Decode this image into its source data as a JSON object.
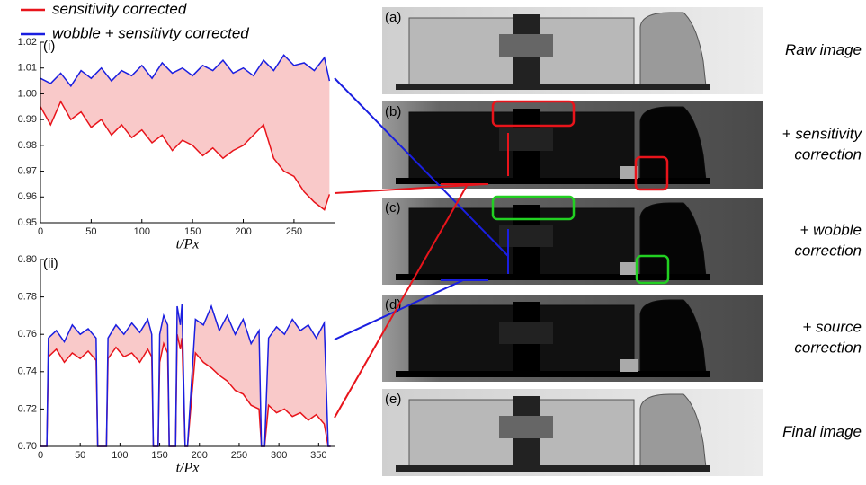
{
  "chart_data": [
    {
      "type": "line",
      "panel_label": "(i)",
      "x_label": "t/Px",
      "xlim": [
        0,
        290
      ],
      "ylim": [
        0.95,
        1.02
      ],
      "xticks": [
        0,
        50,
        100,
        150,
        200,
        250
      ],
      "yticks": [
        0.95,
        0.96,
        0.97,
        0.98,
        0.99,
        {
          "value": 1,
          "label": "1.00"
        },
        1.01,
        1.02
      ],
      "fill_between": "#f9c9c9",
      "x": [
        0,
        10,
        20,
        30,
        40,
        50,
        60,
        70,
        80,
        90,
        100,
        110,
        120,
        130,
        140,
        150,
        160,
        170,
        180,
        190,
        200,
        210,
        220,
        230,
        240,
        250,
        260,
        270,
        280,
        285
      ],
      "series": [
        {
          "name": "sensitivity corrected",
          "color": "#e8141b",
          "values": [
            0.995,
            0.988,
            0.997,
            0.99,
            0.993,
            0.987,
            0.99,
            0.984,
            0.988,
            0.983,
            0.986,
            0.981,
            0.984,
            0.978,
            0.982,
            0.98,
            0.976,
            0.979,
            0.975,
            0.978,
            0.98,
            0.984,
            0.988,
            0.975,
            0.97,
            0.968,
            0.962,
            0.958,
            0.955,
            0.961
          ]
        },
        {
          "name": "wobble + sensitivty corrected",
          "color": "#1a1ee0",
          "values": [
            1.006,
            1.004,
            1.008,
            1.003,
            1.009,
            1.006,
            1.01,
            1.005,
            1.009,
            1.007,
            1.011,
            1.006,
            1.012,
            1.008,
            1.01,
            1.007,
            1.011,
            1.009,
            1.013,
            1.008,
            1.01,
            1.007,
            1.013,
            1.009,
            1.015,
            1.011,
            1.012,
            1.009,
            1.014,
            1.005
          ]
        }
      ]
    },
    {
      "type": "line",
      "panel_label": "(ii)",
      "x_label": "t/Px",
      "xlim": [
        0,
        370
      ],
      "ylim": [
        0.7,
        0.8
      ],
      "xticks": [
        0,
        50,
        100,
        150,
        200,
        250,
        300,
        350
      ],
      "yticks": [
        {
          "value": 0.7,
          "label": "0.70"
        },
        0.72,
        0.74,
        0.76,
        0.78,
        {
          "value": 0.8,
          "label": "0.80"
        }
      ],
      "fill_between": "#f9c9c9",
      "x": [
        0,
        8,
        10,
        20,
        30,
        40,
        50,
        60,
        70,
        72,
        83,
        85,
        95,
        105,
        115,
        125,
        135,
        140,
        142,
        148,
        150,
        155,
        160,
        162,
        170,
        172,
        176,
        178,
        182,
        185,
        195,
        205,
        215,
        225,
        235,
        245,
        255,
        265,
        275,
        278,
        282,
        287,
        297,
        307,
        317,
        327,
        337,
        347,
        357,
        362,
        365
      ],
      "series": [
        {
          "color": "#e8141b",
          "values": [
            0.7,
            0.7,
            0.748,
            0.752,
            0.745,
            0.75,
            0.747,
            0.751,
            0.746,
            0.7,
            0.7,
            0.747,
            0.753,
            0.748,
            0.75,
            0.745,
            0.752,
            0.748,
            0.7,
            0.7,
            0.745,
            0.755,
            0.75,
            0.7,
            0.7,
            0.76,
            0.752,
            0.758,
            0.7,
            0.7,
            0.75,
            0.745,
            0.742,
            0.738,
            0.735,
            0.73,
            0.728,
            0.722,
            0.72,
            0.7,
            0.7,
            0.722,
            0.718,
            0.72,
            0.716,
            0.718,
            0.714,
            0.717,
            0.712,
            0.7,
            0.7
          ]
        },
        {
          "color": "#1a1ee0",
          "values": [
            0.7,
            0.7,
            0.758,
            0.762,
            0.756,
            0.765,
            0.76,
            0.763,
            0.758,
            0.7,
            0.7,
            0.758,
            0.765,
            0.76,
            0.766,
            0.761,
            0.768,
            0.76,
            0.7,
            0.7,
            0.76,
            0.77,
            0.765,
            0.7,
            0.7,
            0.775,
            0.765,
            0.776,
            0.7,
            0.7,
            0.768,
            0.765,
            0.775,
            0.762,
            0.77,
            0.76,
            0.768,
            0.755,
            0.762,
            0.7,
            0.7,
            0.758,
            0.764,
            0.76,
            0.768,
            0.762,
            0.765,
            0.758,
            0.766,
            0.7,
            0.7
          ]
        }
      ]
    }
  ],
  "panels": [
    {
      "label": "(a)",
      "caption": [
        "Raw image"
      ]
    },
    {
      "label": "(b)",
      "caption": [
        "+ sensitivity",
        "correction"
      ]
    },
    {
      "label": "(c)",
      "caption": [
        "+ wobble",
        "correction"
      ]
    },
    {
      "label": "(d)",
      "caption": [
        "+ source",
        "correction"
      ]
    },
    {
      "label": "(e)",
      "caption": [
        "Final image"
      ]
    }
  ]
}
